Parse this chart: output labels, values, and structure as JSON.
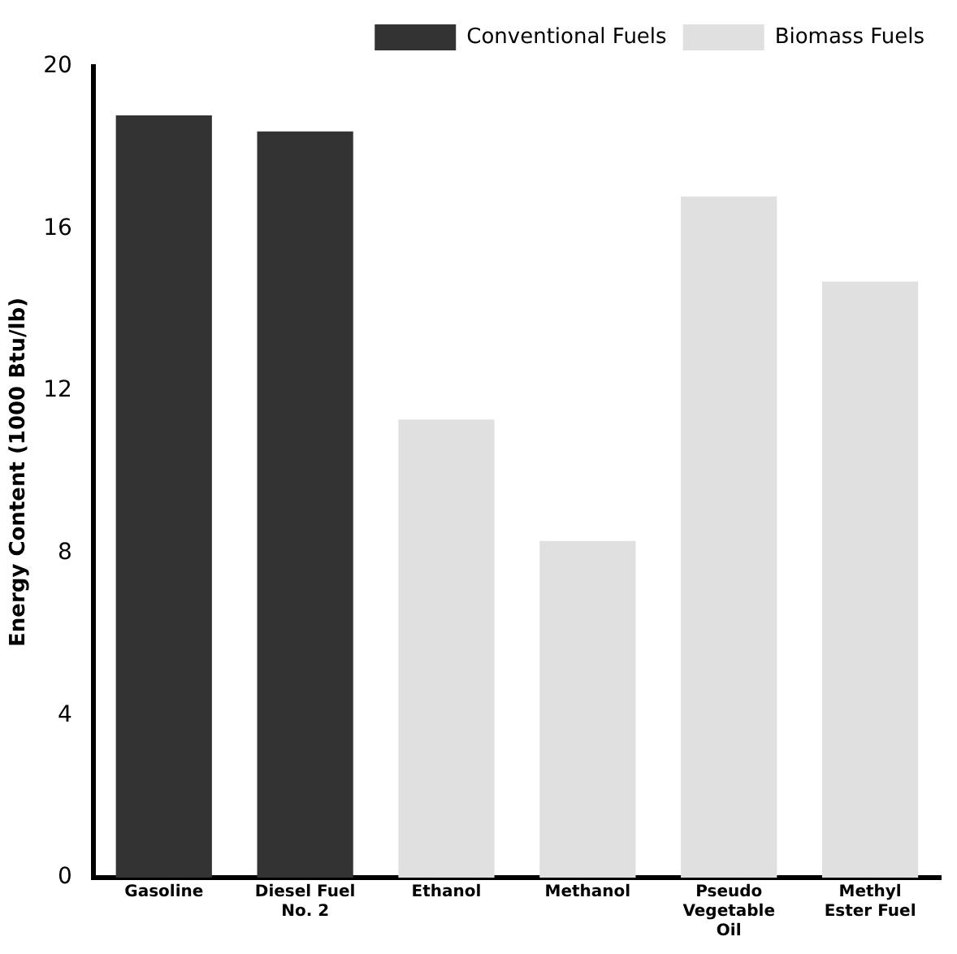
{
  "chart_data": {
    "type": "bar",
    "ylabel": "Energy Content (1000 Btu/lb)",
    "categories": [
      "Gasoline",
      "Diesel Fuel No. 2",
      "Ethanol",
      "Methanol",
      "Pseudo Vegetable Oil",
      "Methyl Ester Fuel"
    ],
    "series": [
      {
        "name": "Conventional Fuels",
        "color": "#333333",
        "values": [
          18.8,
          18.4,
          null,
          null,
          null,
          null
        ]
      },
      {
        "name": "Biomass Fuels",
        "color": "#e0e0e0",
        "values": [
          null,
          null,
          11.3,
          8.3,
          16.8,
          14.7
        ]
      }
    ],
    "ylim": [
      0,
      20
    ],
    "yticks": [
      0,
      4,
      8,
      12,
      16,
      20
    ],
    "grid": false,
    "legend": "top right"
  }
}
